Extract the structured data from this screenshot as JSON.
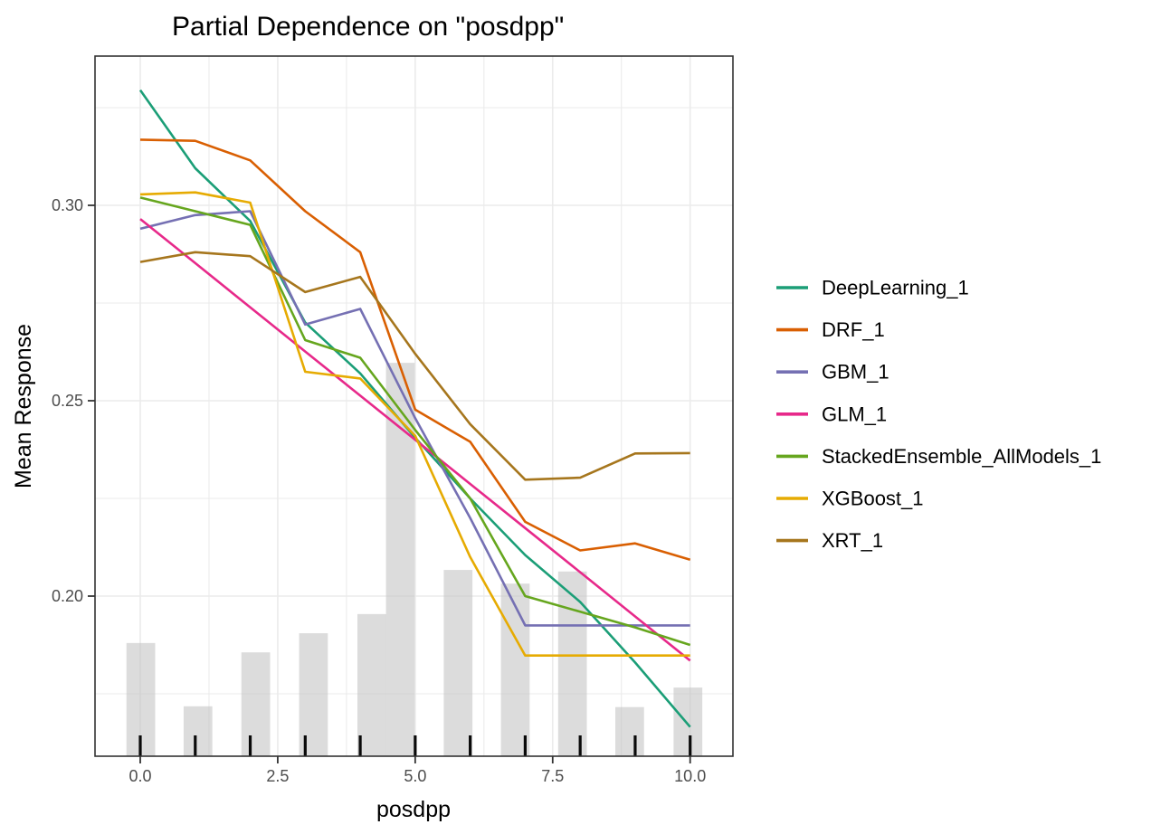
{
  "chart_data": {
    "type": "line",
    "title": "Partial Dependence on \"posdpp\"",
    "xlabel": "posdpp",
    "ylabel": "Mean Response",
    "xlim": [
      -0.82,
      10.78
    ],
    "ylim": [
      0.159,
      0.338
    ],
    "x_ticks": [
      0.0,
      2.5,
      5.0,
      7.5,
      10.0
    ],
    "x_tick_labels": [
      "0.0",
      "2.5",
      "5.0",
      "7.5",
      "10.0"
    ],
    "y_ticks": [
      0.2,
      0.25,
      0.3
    ],
    "y_tick_labels": [
      "0.20",
      "0.25",
      "0.30"
    ],
    "minor_x_gridlines": [
      1.25,
      3.75,
      6.25,
      8.75
    ],
    "minor_y_gridlines": [
      0.175,
      0.225,
      0.275,
      0.325
    ],
    "grid": "on",
    "legend_position": "right",
    "x": [
      0,
      1,
      2,
      3,
      4,
      5,
      6,
      7,
      8,
      9,
      10
    ],
    "series": [
      {
        "name": "DeepLearning_1",
        "color": "#1B9E77",
        "values": [
          0.3295,
          0.3095,
          0.296,
          0.27,
          0.257,
          0.2405,
          0.225,
          0.2105,
          0.1985,
          0.183,
          0.1665
        ]
      },
      {
        "name": "DRF_1",
        "color": "#D95F02",
        "values": [
          0.3168,
          0.3165,
          0.3115,
          0.2985,
          0.288,
          0.2477,
          0.2395,
          0.219,
          0.2117,
          0.2135,
          0.2093
        ]
      },
      {
        "name": "GBM_1",
        "color": "#7570B3",
        "values": [
          0.294,
          0.2975,
          0.2985,
          0.2695,
          0.2735,
          0.2455,
          0.22,
          0.1925,
          0.1925,
          0.1925,
          0.1925
        ]
      },
      {
        "name": "GLM_1",
        "color": "#E7298A",
        "values": [
          0.2965,
          0.2852,
          0.2739,
          0.2626,
          0.2513,
          0.24,
          0.2287,
          0.2174,
          0.2061,
          0.1948,
          0.1835
        ]
      },
      {
        "name": "StackedEnsemble_AllModels_1",
        "color": "#66A61E",
        "values": [
          0.302,
          0.2985,
          0.295,
          0.2655,
          0.261,
          0.2425,
          0.225,
          0.2,
          0.196,
          0.192,
          0.1875
        ]
      },
      {
        "name": "XGBoost_1",
        "color": "#E6AB02",
        "values": [
          0.3028,
          0.3033,
          0.3007,
          0.2574,
          0.2557,
          0.241,
          0.21,
          0.1848,
          0.1848,
          0.1848,
          0.1848
        ]
      },
      {
        "name": "XRT_1",
        "color": "#A6761D",
        "values": [
          0.2855,
          0.288,
          0.287,
          0.2778,
          0.2817,
          0.262,
          0.244,
          0.2298,
          0.2303,
          0.2365,
          0.2366
        ]
      }
    ],
    "histogram": {
      "color": "#BFBFBF",
      "opacity": 0.55,
      "bin_width": 0.522,
      "bars": [
        {
          "center": 0.01,
          "top": 0.188
        },
        {
          "center": 1.05,
          "top": 0.1718
        },
        {
          "center": 2.1,
          "top": 0.1856
        },
        {
          "center": 3.15,
          "top": 0.1905
        },
        {
          "center": 4.21,
          "top": 0.1954
        },
        {
          "center": 4.73,
          "top": 0.2597
        },
        {
          "center": 5.78,
          "top": 0.2067
        },
        {
          "center": 6.82,
          "top": 0.2032
        },
        {
          "center": 7.86,
          "top": 0.2063
        },
        {
          "center": 8.9,
          "top": 0.1716
        },
        {
          "center": 9.96,
          "top": 0.1766
        }
      ]
    },
    "rug_x": [
      0,
      1,
      2,
      3,
      4,
      5,
      6,
      7,
      8,
      9,
      10
    ],
    "colors": {
      "panel_border": "#333333",
      "gridline": "#EBEBEB",
      "tick_mark": "#333333",
      "rug": "#0a0a0a",
      "tick_text": "#4d4d4d"
    }
  }
}
